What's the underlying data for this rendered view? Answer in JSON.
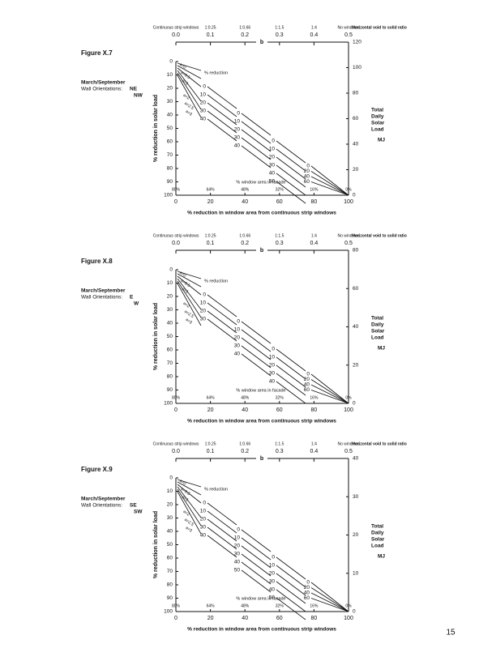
{
  "page_number": "15",
  "figures": [
    {
      "label": "Figure X.7",
      "period": "March/September",
      "orientation_label": "Wall Orientations:",
      "orientations": [
        "NE",
        "NW"
      ],
      "top_axis": {
        "headers": [
          "Continuous strip windows",
          "1:0.25",
          "1:0.66",
          "1:1.5",
          "1:4",
          "No windows"
        ],
        "ticks": [
          "0.0",
          "0.1",
          "0.2",
          "0.3",
          "0.4",
          "0.5"
        ],
        "label": "b",
        "right_header": "Horizontal void to solid ratio"
      },
      "left_axis": {
        "label": "% reduction in solar load",
        "ticks": [
          "0",
          "10",
          "20",
          "30",
          "40",
          "50",
          "60",
          "70",
          "80",
          "90",
          "100"
        ]
      },
      "right_axis": {
        "label": [
          "Total",
          "Daily",
          "Solar",
          "Load"
        ],
        "unit": "MJ",
        "ticks": [
          "0",
          "20",
          "40",
          "60",
          "80",
          "100",
          "120"
        ]
      },
      "bottom_axis": {
        "label": "% reduction in window area from continuous strip windows",
        "ticks": [
          "0",
          "20",
          "40",
          "60",
          "80",
          "100"
        ]
      },
      "a_labels": [
        "a=0",
        "a=0.5",
        "a=1",
        "a=2",
        "a=2.5",
        "a=3"
      ],
      "reduction_header": "% reduction",
      "facade_header": "% window area in facade",
      "facade_ticks": [
        "80%",
        "64%",
        "48%",
        "32%",
        "16%",
        "0%"
      ],
      "groups": [
        [
          "0",
          "10",
          "20",
          "30",
          "40"
        ],
        [
          "0",
          "10",
          "20",
          "30",
          "40"
        ],
        [
          "0",
          "10",
          "20",
          "30",
          "40",
          "50"
        ],
        [
          "0",
          "20",
          "40",
          "60"
        ]
      ]
    },
    {
      "label": "Figure X.8",
      "period": "March/September",
      "orientation_label": "Wall Orientations:",
      "orientations": [
        "E",
        "W"
      ],
      "top_axis": {
        "headers": [
          "Continuous strip windows",
          "1:0.25",
          "1:0.66",
          "1:1.5",
          "1:4",
          "No windows"
        ],
        "ticks": [
          "0.0",
          "0.1",
          "0.2",
          "0.3",
          "0.4",
          "0.5"
        ],
        "label": "b",
        "right_header": "Horizontal void to solid ratio"
      },
      "left_axis": {
        "label": "% reduction in solar load",
        "ticks": [
          "0",
          "10",
          "20",
          "30",
          "40",
          "50",
          "60",
          "70",
          "80",
          "90",
          "100"
        ]
      },
      "right_axis": {
        "label": [
          "Total",
          "Daily",
          "Solar",
          "Load"
        ],
        "unit": "MJ",
        "ticks": [
          "0",
          "20",
          "40",
          "60",
          "80"
        ]
      },
      "bottom_axis": {
        "label": "% reduction in window area from continuous strip windows",
        "ticks": [
          "0",
          "20",
          "40",
          "60",
          "80",
          "100"
        ]
      },
      "a_labels": [
        "a=0",
        "a=0.5",
        "a=1",
        "a=2",
        "a=2.5",
        "a=3"
      ],
      "reduction_header": "% reduction",
      "facade_header": "% window area in facade",
      "facade_ticks": [
        "80%",
        "64%",
        "48%",
        "32%",
        "16%",
        "0%"
      ],
      "groups": [
        [
          "0",
          "10",
          "20",
          "30"
        ],
        [
          "0",
          "10",
          "20",
          "30",
          "40"
        ],
        [
          "0",
          "10",
          "20",
          "30",
          "40"
        ],
        [
          "0",
          "20",
          "40",
          "60"
        ]
      ]
    },
    {
      "label": "Figure X.9",
      "period": "March/September",
      "orientation_label": "Wall Orientations:",
      "orientations": [
        "SE",
        "SW"
      ],
      "top_axis": {
        "headers": [
          "Continuous strip windows",
          "1:0.25",
          "1:0.66",
          "1:1.5",
          "1:4",
          "No windows"
        ],
        "ticks": [
          "0.0",
          "0.1",
          "0.2",
          "0.3",
          "0.4",
          "0.5"
        ],
        "label": "b",
        "right_header": "Horizontal void to solid ratio"
      },
      "left_axis": {
        "label": "% reduction in solar load",
        "ticks": [
          "0",
          "10",
          "20",
          "30",
          "40",
          "50",
          "60",
          "70",
          "80",
          "90",
          "100"
        ]
      },
      "right_axis": {
        "label": [
          "Total",
          "Daily",
          "Solar",
          "Load"
        ],
        "unit": "MJ",
        "ticks": [
          "0",
          "10",
          "20",
          "30",
          "40"
        ]
      },
      "bottom_axis": {
        "label": "% reduction in window area from continuous strip windows",
        "ticks": [
          "0",
          "20",
          "40",
          "60",
          "80",
          "100"
        ]
      },
      "a_labels": [
        "a=0",
        "a=0.5",
        "a=1",
        "a=2",
        "a=2.5",
        "a=3"
      ],
      "reduction_header": "% reduction",
      "facade_header": "% window area in facade",
      "facade_ticks": [
        "80%",
        "64%",
        "48%",
        "32%",
        "16%",
        "0%"
      ],
      "groups": [
        [
          "0",
          "10",
          "20",
          "30",
          "40"
        ],
        [
          "0",
          "10",
          "20",
          "30",
          "40",
          "50"
        ],
        [
          "0",
          "10",
          "20",
          "30",
          "40",
          "50"
        ],
        [
          "0",
          "20",
          "40",
          "60"
        ]
      ]
    }
  ]
}
